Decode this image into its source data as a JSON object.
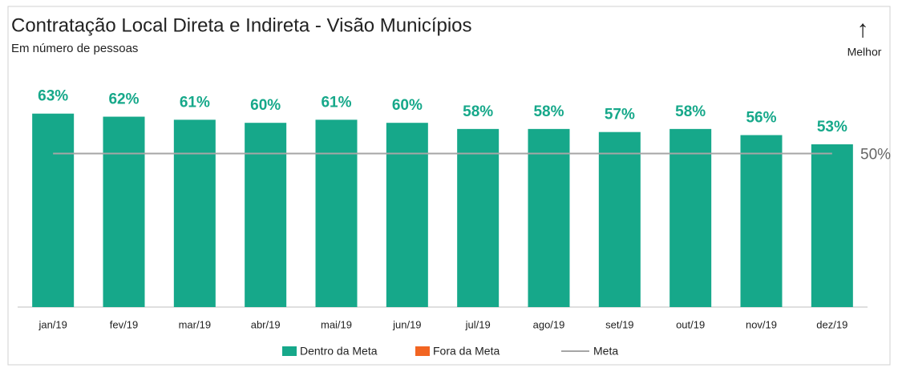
{
  "chart_data": {
    "type": "bar",
    "title": "Contratação Local Direta e Indireta - Visão Municípios",
    "subtitle": "Em número de pessoas",
    "annotation": {
      "arrow": "↑",
      "text": "Melhor"
    },
    "categories": [
      "jan/19",
      "fev/19",
      "mar/19",
      "abr/19",
      "mai/19",
      "jun/19",
      "jul/19",
      "ago/19",
      "set/19",
      "out/19",
      "nov/19",
      "dez/19"
    ],
    "series": [
      {
        "name": "Dentro da Meta",
        "color": "#16a88a",
        "values": [
          63,
          62,
          61,
          60,
          61,
          60,
          58,
          58,
          57,
          58,
          56,
          53
        ],
        "value_labels": [
          "63%",
          "62%",
          "61%",
          "60%",
          "61%",
          "60%",
          "58%",
          "58%",
          "57%",
          "58%",
          "56%",
          "53%"
        ]
      },
      {
        "name": "Fora da Meta",
        "color": "#f26522",
        "values": [
          null,
          null,
          null,
          null,
          null,
          null,
          null,
          null,
          null,
          null,
          null,
          null
        ]
      },
      {
        "name": "Meta",
        "color": "#a6a6a6",
        "type": "line",
        "value": 50,
        "value_label": "50%"
      }
    ],
    "ylim": [
      0,
      100
    ],
    "grid": false
  }
}
